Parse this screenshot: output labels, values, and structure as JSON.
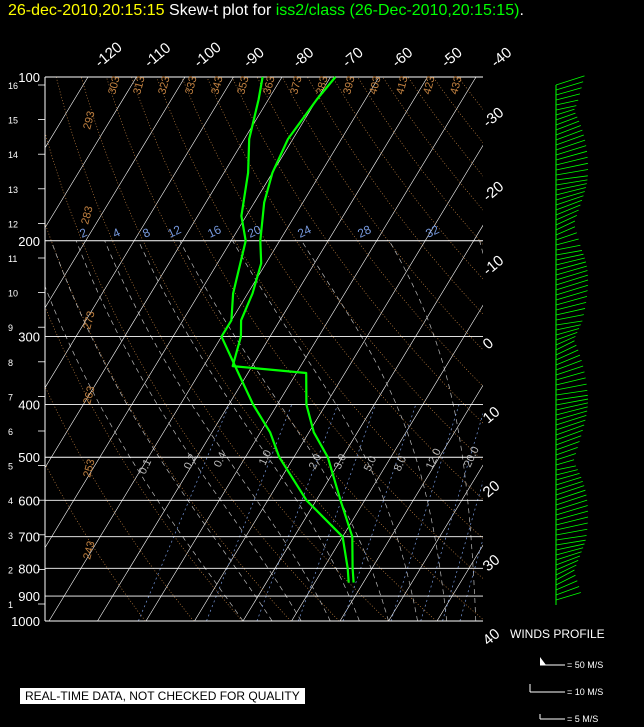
{
  "header": {
    "timestamp": "26-dec-2010,20:15:15",
    "middle": "Skew-t plot for",
    "source": "iss2/class (26-Dec-2010,20:15:15)",
    "end": "."
  },
  "disclaimer": "REAL-TIME DATA, NOT CHECKED FOR QUALITY",
  "winds_profile": {
    "title": "WINDS PROFILE",
    "legend": [
      {
        "label": "= 50 M/S"
      },
      {
        "label": "= 10 M/S"
      },
      {
        "label": "= 5 M/S"
      }
    ]
  },
  "colors": {
    "trace": "#00ff00",
    "isobar": "#ffffff",
    "isotherm": "#ffffff",
    "dry_adiabat": "#c08040",
    "moist_adiabat": "#bbbbbb",
    "mixing_ratio": "#7799dd"
  },
  "chart_data": {
    "type": "line",
    "xlabel": "",
    "ylabel": "",
    "pressure_levels_hPa": [
      100,
      200,
      300,
      400,
      500,
      600,
      700,
      800,
      900,
      1000
    ],
    "height_ticks_km": [
      "16",
      "15",
      "14",
      "13",
      "12",
      "11",
      "10",
      "9",
      "8",
      "7",
      "6",
      "5",
      "4",
      "3",
      "2",
      "1"
    ],
    "temperature_top_labels_C": [
      "-120",
      "-110",
      "-100",
      "-90",
      "-80",
      "-70",
      "-60",
      "-50",
      "-40"
    ],
    "temperature_right_labels_C": [
      "-30",
      "-20",
      "-10",
      "0",
      "10",
      "20",
      "30",
      "40"
    ],
    "dry_adiabat_labels_K": [
      "243",
      "253",
      "263",
      "273",
      "283",
      "293",
      "303",
      "313",
      "323",
      "333",
      "343",
      "353",
      "363",
      "373",
      "383",
      "393",
      "403",
      "413",
      "423",
      "433"
    ],
    "mixing_ratio_labels": [
      "2",
      "4",
      "8",
      "12",
      "16",
      "20",
      "24",
      "28",
      "32"
    ],
    "moist_adiabat_labels": [
      "0.1",
      "0.2",
      "0.4",
      "1.0",
      "2.0",
      "3.0",
      "5.0",
      "8.0",
      "12.0",
      "20.0"
    ],
    "temperature_profile": {
      "pressure": [
        850,
        800,
        700,
        600,
        500,
        450,
        400,
        350,
        340,
        300,
        280,
        250,
        220,
        200,
        170,
        150,
        130,
        110,
        100
      ],
      "temperature": [
        -2,
        -4,
        -8,
        -15,
        -23,
        -29,
        -34,
        -38,
        -54,
        -56,
        -58,
        -59,
        -61,
        -64,
        -68,
        -70,
        -71,
        -70,
        -69
      ]
    },
    "dewpoint_profile": {
      "pressure": [
        850,
        800,
        700,
        600,
        500,
        450,
        400,
        350,
        300,
        280,
        250,
        200,
        180,
        150,
        130,
        110,
        100
      ],
      "dewpoint": [
        -3,
        -5,
        -10,
        -22,
        -33,
        -38,
        -45,
        -52,
        -60,
        -60,
        -63,
        -67,
        -71,
        -75,
        -79,
        -82,
        -84
      ]
    }
  }
}
